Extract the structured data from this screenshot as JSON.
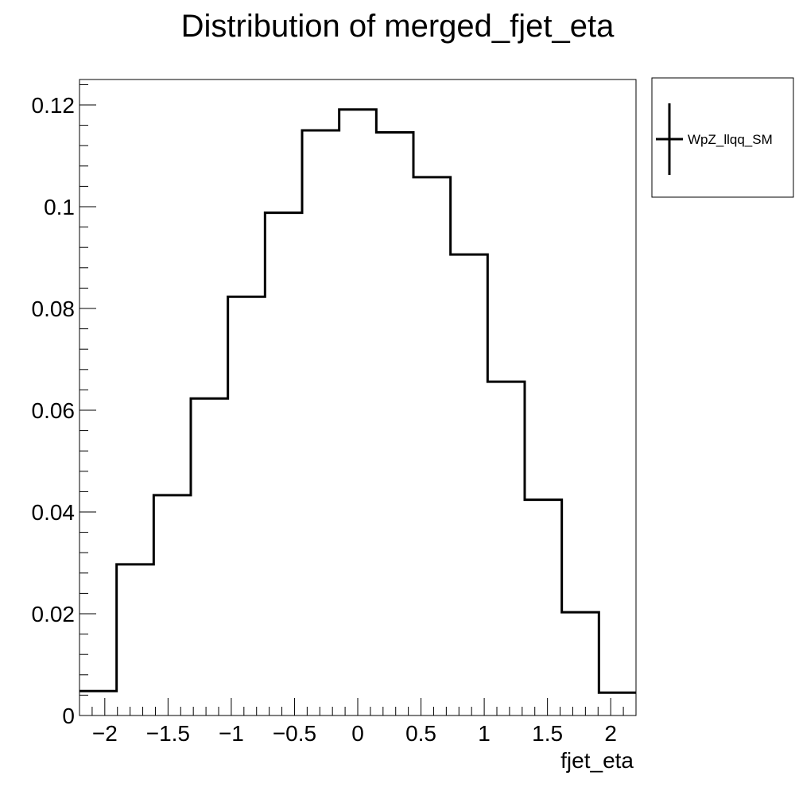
{
  "chart_data": {
    "type": "histogram",
    "title": "Distribution of merged_fjet_eta",
    "xlabel": "fjet_eta",
    "ylabel": "",
    "xlim": [
      -2.2,
      2.2
    ],
    "ylim": [
      0,
      0.125
    ],
    "x_ticks": [
      -2,
      -1.5,
      -1,
      -0.5,
      0,
      0.5,
      1,
      1.5,
      2
    ],
    "x_tick_labels": [
      "−2",
      "−1.5",
      "−1",
      "−0.5",
      "0",
      "0.5",
      "1",
      "1.5",
      "2"
    ],
    "y_ticks": [
      0,
      0.02,
      0.04,
      0.06,
      0.08,
      0.1,
      0.12
    ],
    "y_tick_labels": [
      "0",
      "0.02",
      "0.04",
      "0.06",
      "0.08",
      "0.1",
      "0.12"
    ],
    "bin_edges": [
      -2.2,
      -1.9067,
      -1.6133,
      -1.32,
      -1.0267,
      -0.7333,
      -0.44,
      -0.1467,
      0.1467,
      0.44,
      0.7333,
      1.0267,
      1.32,
      1.6133,
      1.9067,
      2.2
    ],
    "series": [
      {
        "name": "WpZ_llqq_SM",
        "color": "#000000",
        "values": [
          0.0048,
          0.0297,
          0.0433,
          0.0623,
          0.0823,
          0.0988,
          0.115,
          0.1191,
          0.1146,
          0.1058,
          0.0906,
          0.0656,
          0.0424,
          0.0203,
          0.0045
        ]
      }
    ],
    "grid": false,
    "legend_position": "top-right, outside plot"
  }
}
